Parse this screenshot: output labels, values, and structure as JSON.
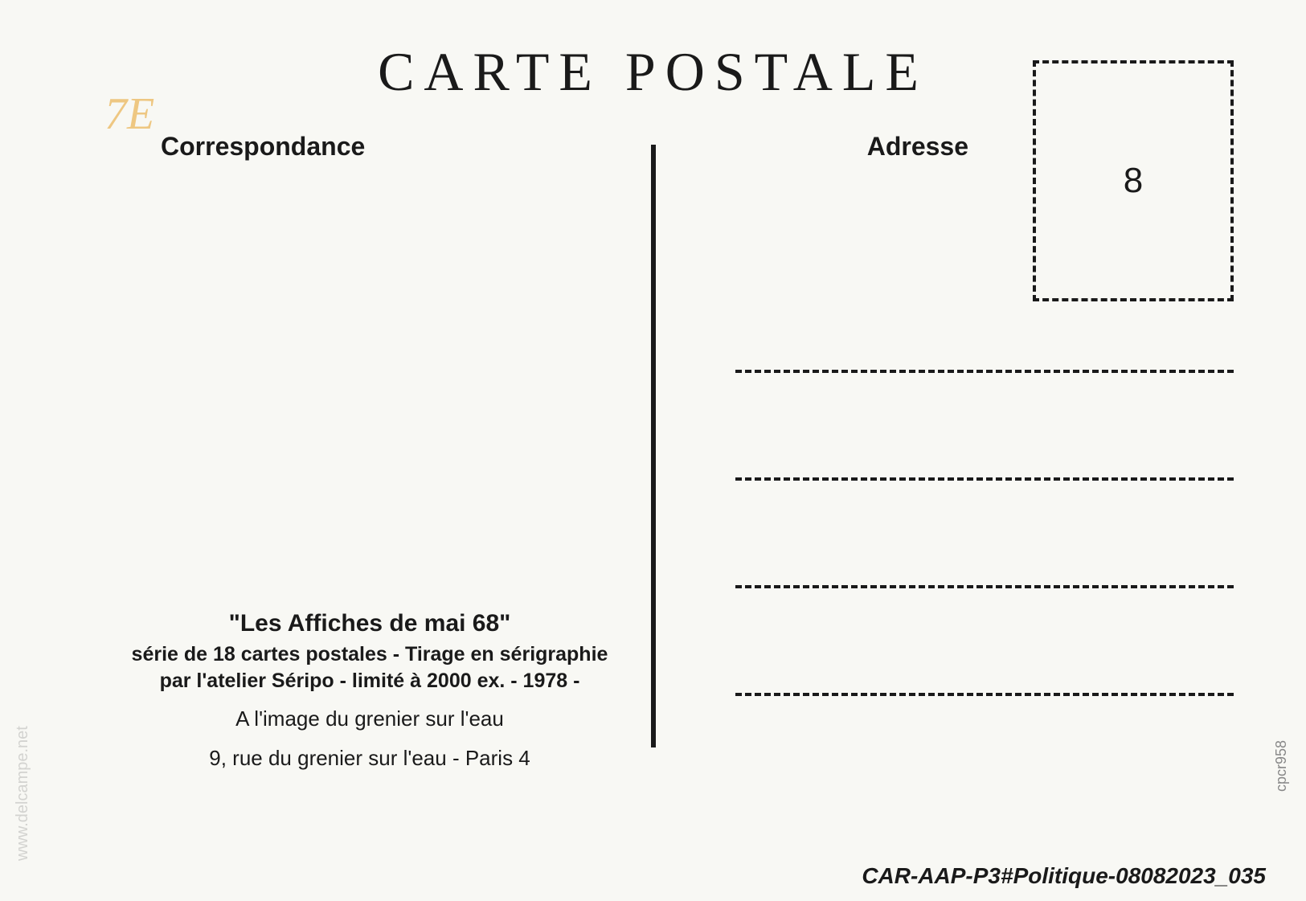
{
  "title": "CARTE POSTALE",
  "labels": {
    "correspondance": "Correspondance",
    "adresse": "Adresse"
  },
  "stamp": {
    "number": "8"
  },
  "annotation": "7E",
  "description": {
    "title": "\"Les Affiches de mai 68\"",
    "line1": "série de 18 cartes postales - Tirage en sérigraphie",
    "line2": "par l'atelier Séripo - limité à 2000 ex. - 1978 -",
    "address_line1": "A l'image du grenier sur l'eau",
    "address_line2": "9, rue du grenier sur l'eau - Paris 4"
  },
  "footer": {
    "code": "CAR-AAP-P3#Politique-08082023_035",
    "watermark": "www.delcampe.net",
    "credit": "cpcr958"
  },
  "colors": {
    "background": "#f8f8f4",
    "text": "#1a1a1a",
    "annotation": "#e8a838",
    "watermark": "rgba(100, 100, 100, 0.25)"
  }
}
